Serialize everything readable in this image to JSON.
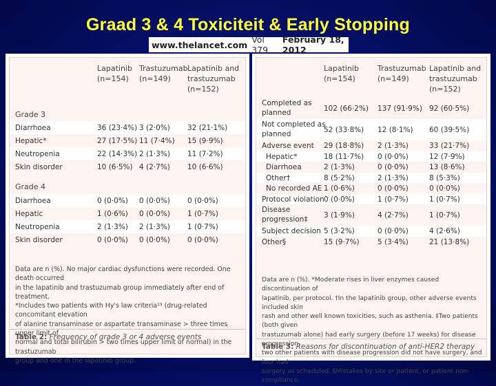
{
  "slide": {
    "title": "Graad 3 & 4 Toxiciteit & Early Stopping"
  },
  "journal": {
    "site": "www.thelancet.com",
    "volume": "Vol 379",
    "date": "February 18, 2012"
  },
  "table2": {
    "columns": [
      {
        "line1": "Lapatinib",
        "line2": "(n=154)",
        "line3": ""
      },
      {
        "line1": "Trastuzumab",
        "line2": "(n=149)",
        "line3": ""
      },
      {
        "line1": "Lapatinib and",
        "line2": "trastuzumab",
        "line3": "(n=152)"
      }
    ],
    "grade3_label": "Grade 3",
    "grade3_rows": [
      {
        "label": "Diarrhoea",
        "v1": "36 (23·4%)",
        "v2": "3 (2·0%)",
        "v3": "32 (21·1%)"
      },
      {
        "label": "Hepatic*",
        "v1": "27 (17·5%)",
        "v2": "11 (7·4%)",
        "v3": "15 (9·9%)"
      },
      {
        "label": "Neutropenia",
        "v1": "22 (14·3%)",
        "v2": "2 (1·3%)",
        "v3": "11 (7·2%)"
      },
      {
        "label": "Skin disorder",
        "v1": "10 (6·5%)",
        "v2": "4 (2·7%)",
        "v3": "10 (6·6%)"
      }
    ],
    "grade4_label": "Grade 4",
    "grade4_rows": [
      {
        "label": "Diarrhoea",
        "v1": "0 (0·0%)",
        "v2": "0 (0·0%)",
        "v3": "0 (0·0%)"
      },
      {
        "label": "Hepatic",
        "v1": "1 (0·6%)",
        "v2": "0 (0·0%)",
        "v3": "1 (0·7%)"
      },
      {
        "label": "Neutropenia",
        "v1": "2 (1·3%)",
        "v2": "2 (1·3%)",
        "v3": "1 (0·7%)"
      },
      {
        "label": "Skin disorder",
        "v1": "0 (0·0%)",
        "v2": "0 (0·0%)",
        "v3": "0 (0·0%)"
      }
    ],
    "footnote_lines": [
      "Data are n (%). No major cardiac dysfunctions were recorded. One death occurred",
      "in the lapatinib and trastuzumab group immediately after end of treatment.",
      "*Includes two patients with Hy's law criteria¹³ (drug-related concomitant elevation",
      "of alanine transaminase or aspartate transaminase > three times upper limit of",
      "normal and total bilirubin > two times upper limit of normal) in the trastuzumab",
      "group and one in the lapatinib group."
    ],
    "caption_label": "Table 2:",
    "caption_text": "Frequency of grade 3 or 4 adverse events"
  },
  "table3": {
    "columns": [
      {
        "line1": "Lapatinib",
        "line2": "(n=154)",
        "line3": ""
      },
      {
        "line1": "Trastuzumab",
        "line2": "(n=149)",
        "line3": ""
      },
      {
        "line1": "Lapatinib and",
        "line2": "trastuzumab",
        "line3": "(n=152)"
      }
    ],
    "rows": [
      {
        "label": "Completed as",
        "label2": "planned",
        "v1": "102 (66·2%)",
        "v2": "137 (91·9%)",
        "v3": "92 (60·5%)"
      },
      {
        "label": "Not completed as",
        "label2": "planned",
        "v1": "52 (33·8%)",
        "v2": "12 (8·1%)",
        "v3": "60 (39·5%)"
      },
      {
        "label": "Adverse event",
        "label2": "",
        "v1": "29 (18·8%)",
        "v2": "2 (1·3%)",
        "v3": "33 (21·7%)"
      },
      {
        "label": "Hepatic*",
        "label2": "",
        "v1": "18 (11·7%)",
        "v2": "0 (0·0%)",
        "v3": "12 (7·9%)"
      },
      {
        "label": "Diarrhoea",
        "label2": "",
        "v1": "2 (1·3%)",
        "v2": "0 (0·0%)",
        "v3": "13 (8·6%)"
      },
      {
        "label": "Other†",
        "label2": "",
        "v1": "8 (5·2%)",
        "v2": "2 (1·3%)",
        "v3": "8 (5·3%)"
      },
      {
        "label": "No recorded AE",
        "label2": "",
        "v1": "1 (0·6%)",
        "v2": "0 (0·0%)",
        "v3": "0 (0·0%)"
      },
      {
        "label": "Protocol violation",
        "label2": "",
        "v1": "0 (0·0%)",
        "v2": "1 (0·7%)",
        "v3": "1 (0·7%)"
      },
      {
        "label": "Disease",
        "label2": "progression‡",
        "v1": "3 (1·9%)",
        "v2": "4 (2·7%)",
        "v3": "1 (0·7%)"
      },
      {
        "label": "Subject decision",
        "label2": "",
        "v1": "5 (3·2%)",
        "v2": "0 (0·0%)",
        "v3": "4 (2·6%)"
      },
      {
        "label": "Other§",
        "label2": "",
        "v1": "15 (9·7%)",
        "v2": "5 (3·4%)",
        "v3": "21 (13·8%)"
      }
    ],
    "footnote_lines": [
      "Data are n (%). *Moderate rises in liver enzymes caused discontinuation of",
      "lapatinib, per protocol. †In the lapatinib group, other adverse events included skin",
      "rash and other well known toxicities, such as asthenia. ‡Two patients (both given",
      "trastuzumab alone) had early surgery (before 17 weeks) for disease progression,",
      "two other patients with disease progression did not have surgery, and four had",
      "surgery as scheduled. §Mistakes by site or patient, or patient non-compliance."
    ],
    "caption_label": "Table 3:",
    "caption_text": "Reasons for discontinuation of anti-HER2 therapy"
  }
}
